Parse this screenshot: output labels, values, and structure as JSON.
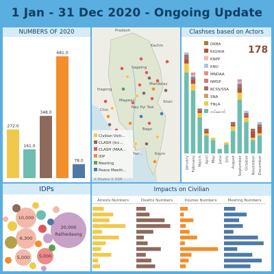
{
  "title": "1 Jan - 31 Dec 2020 - Ongoing Update",
  "numbers": {
    "header": "NUMBERS OF 2020",
    "chart_data": {
      "type": "bar",
      "values": [
        272.0,
        161.0,
        348.0,
        681.0,
        78.0
      ],
      "labels": [
        "272.0",
        "161.0",
        "348.0",
        "681.0",
        "78.0"
      ],
      "colors": [
        "#f0c94a",
        "#6dbdb0",
        "#8d6a5c",
        "#f28e2b",
        "#4e79a7"
      ],
      "ylim": [
        0,
        720
      ]
    }
  },
  "map": {
    "places": [
      "Pradesh",
      "Kachin",
      "Sagaing",
      "Mandalay",
      "Magway",
      "Bago",
      "Shan",
      "Nay Pyi Taw",
      "Chin",
      "Kayin",
      "ttagong",
      "Yan..."
    ],
    "legend": [
      {
        "label": "Civilian Victi...",
        "color": "#f0c94a"
      },
      {
        "label": "CLASH (Inc...",
        "color": "#8d6a5c"
      },
      {
        "label": "CLASH (MAA...",
        "color": "#e15759"
      },
      {
        "label": "IDP",
        "color": "#f28e2b"
      },
      {
        "label": "Meeting",
        "color": "#59a14f"
      },
      {
        "label": "Peace Meeth...",
        "color": "#4e79a7"
      }
    ],
    "credit": "© Mapbox © OSM"
  },
  "clashes": {
    "header": "Clashses based on Actors",
    "total": "178",
    "legend": [
      {
        "label": "DKBA",
        "color": "#b07c2a"
      },
      {
        "label": "KIO/KIA",
        "color": "#b5503b"
      },
      {
        "label": "KNPP",
        "color": "#f5b8a8"
      },
      {
        "label": "KNU",
        "color": "#a9c4e8"
      },
      {
        "label": "MNDAA",
        "color": "#f08a8a"
      },
      {
        "label": "NMSP",
        "color": "#d97a6a"
      },
      {
        "label": "RCSS/SSA",
        "color": "#9a7468"
      },
      {
        "label": "SNA",
        "color": "#c9a15b"
      },
      {
        "label": "TNLA",
        "color": "#f0c94a"
      },
      {
        "label": "တပ်မတော်",
        "color": "#6dbdb0"
      }
    ],
    "chart_data": {
      "type": "bar",
      "stacked": true,
      "categories": [
        "January",
        "February",
        "March",
        "April",
        "May",
        "June",
        "July",
        "August",
        "September",
        "October",
        "November",
        "December"
      ],
      "series": [
        {
          "name": "တပ်မတော်",
          "values": [
            36,
            28,
            16,
            8,
            6,
            2,
            4,
            10,
            24,
            14,
            6,
            8
          ],
          "color": "#6dbdb0"
        },
        {
          "name": "TNLA",
          "values": [
            4,
            3,
            2,
            1,
            1,
            0,
            1,
            2,
            3,
            2,
            1,
            1
          ],
          "color": "#f0c94a"
        },
        {
          "name": "KIO/KIA",
          "values": [
            2,
            2,
            1,
            1,
            0,
            0,
            0,
            1,
            2,
            1,
            3,
            3
          ],
          "color": "#b5503b"
        },
        {
          "name": "RCSS/SSA",
          "values": [
            2,
            1,
            1,
            1,
            0,
            0,
            0,
            1,
            2,
            1,
            1,
            1
          ],
          "color": "#9a7468"
        },
        {
          "name": "KNU",
          "values": [
            1,
            1,
            0,
            0,
            0,
            0,
            0,
            0,
            1,
            1,
            0,
            1
          ],
          "color": "#a9c4e8"
        },
        {
          "name": "MNDAA",
          "values": [
            0,
            1,
            0,
            0,
            0,
            0,
            0,
            0,
            1,
            0,
            0,
            0
          ],
          "color": "#f08a8a"
        }
      ]
    }
  },
  "idps": {
    "header": "IDPs",
    "bubble_labels": [
      "10,000",
      "6,300",
      "5,000",
      "5,000",
      "20,000",
      "Rathedaung"
    ]
  },
  "impacts": {
    "header": "Impacts on Civilian",
    "columns": [
      {
        "label": "Arrests Numbers",
        "color": "#f0c94a",
        "values": [
          12,
          22,
          18,
          35,
          10,
          28,
          14,
          9,
          20,
          6,
          8
        ]
      },
      {
        "label": "Deaths Numbers",
        "color": "#8d6a5c",
        "values": [
          10,
          14,
          30,
          36,
          18,
          8,
          12,
          26,
          10,
          16,
          20
        ]
      },
      {
        "label": "Injuries Numbers",
        "color": "#f28e2b",
        "values": [
          8,
          4,
          14,
          6,
          10,
          18,
          5,
          40,
          12,
          9,
          6
        ]
      },
      {
        "label": "Meeting Numbers",
        "color": "#4e79a7",
        "values": [
          12,
          24,
          16,
          20,
          10,
          36,
          42,
          14,
          30,
          40,
          28
        ]
      }
    ]
  }
}
